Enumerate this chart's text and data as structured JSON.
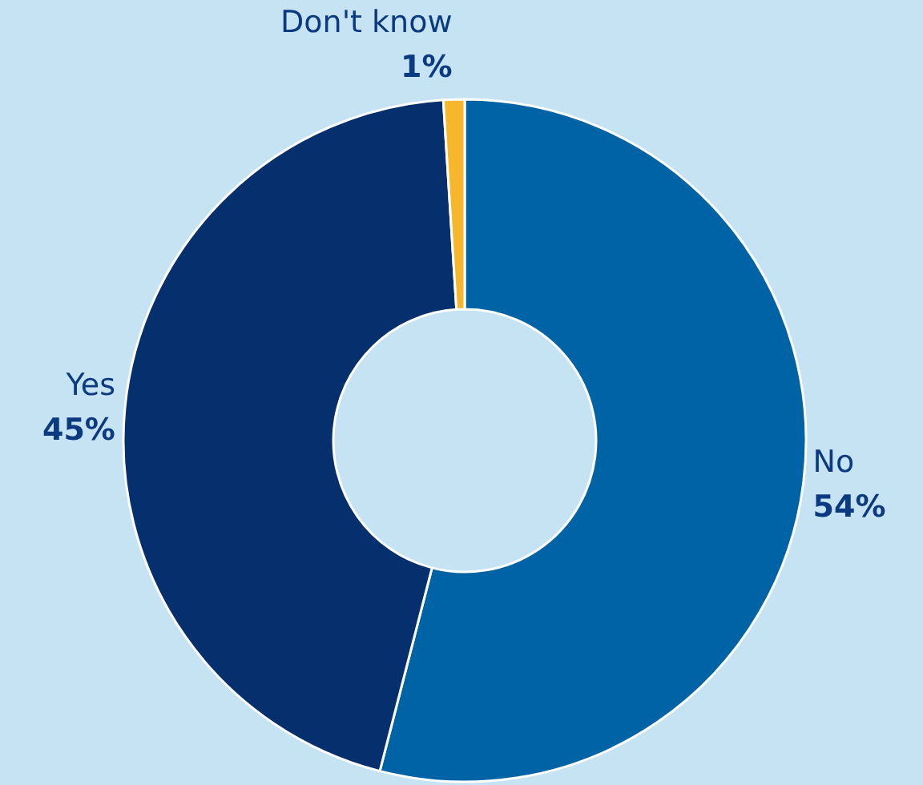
{
  "chart_data": {
    "type": "donut",
    "categories": [
      "No",
      "Yes",
      "Don't know"
    ],
    "values": [
      54,
      45,
      1
    ],
    "colors": [
      "#0063a6",
      "#062f6e",
      "#f7b72c"
    ],
    "value_labels": [
      "54%",
      "45%",
      "1%"
    ]
  }
}
